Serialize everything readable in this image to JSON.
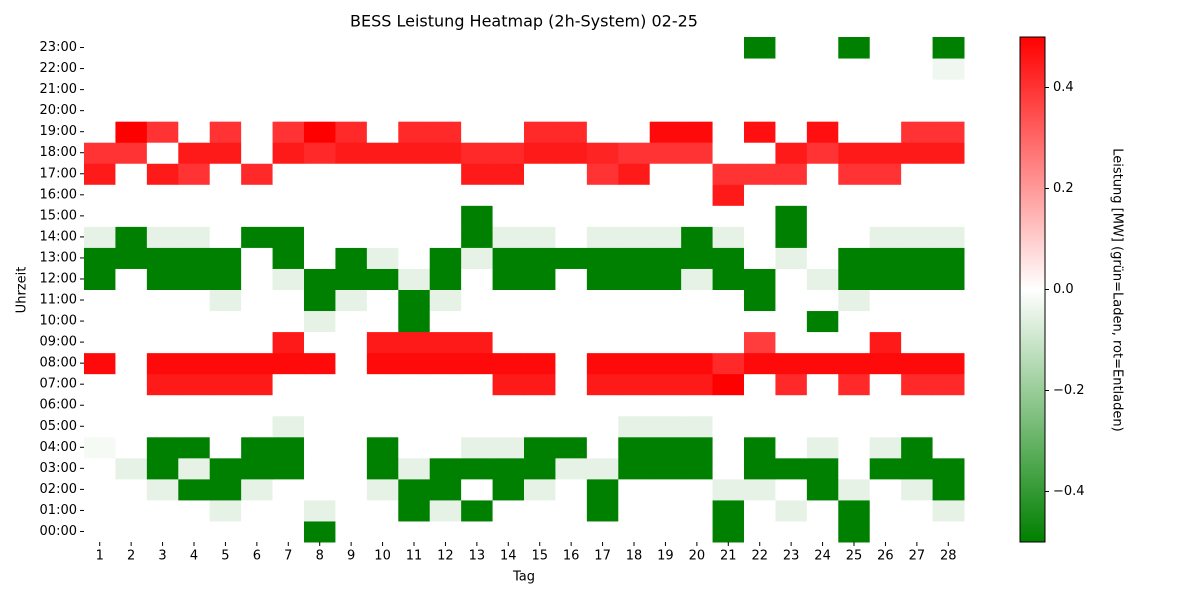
{
  "chart_data": {
    "type": "heatmap",
    "title": "BESS Leistung Heatmap (2h-System) 02-25",
    "x_label": "Tag",
    "y_label": "Uhrzeit",
    "colorbar_label": "Leistung [MW] (grün=Laden, rot=Entladen)",
    "x": [
      1,
      2,
      3,
      4,
      5,
      6,
      7,
      8,
      9,
      10,
      11,
      12,
      13,
      14,
      15,
      16,
      17,
      18,
      19,
      20,
      21,
      22,
      23,
      24,
      25,
      26,
      27,
      28
    ],
    "y": [
      "00:00",
      "01:00",
      "02:00",
      "03:00",
      "04:00",
      "05:00",
      "06:00",
      "07:00",
      "08:00",
      "09:00",
      "10:00",
      "11:00",
      "12:00",
      "13:00",
      "14:00",
      "15:00",
      "16:00",
      "17:00",
      "18:00",
      "19:00",
      "20:00",
      "21:00",
      "22:00",
      "23:00"
    ],
    "z": [
      [
        0,
        0,
        0,
        0,
        0,
        0,
        0,
        -0.5,
        0,
        0,
        0,
        0,
        0,
        0,
        0,
        0,
        0,
        0,
        0,
        0,
        -0.5,
        0,
        0,
        0,
        -0.5,
        0,
        0,
        0
      ],
      [
        0,
        0,
        0,
        0,
        -0.05,
        0,
        0,
        -0.05,
        0,
        0,
        -0.5,
        -0.05,
        -0.5,
        0,
        0,
        0,
        -0.5,
        0,
        0,
        0,
        -0.5,
        0,
        -0.05,
        0,
        -0.5,
        0,
        0,
        -0.05
      ],
      [
        0,
        0,
        -0.05,
        -0.5,
        -0.5,
        -0.05,
        0,
        0,
        0,
        -0.05,
        -0.5,
        -0.5,
        0,
        -0.5,
        -0.05,
        0,
        -0.5,
        0,
        0,
        0,
        -0.05,
        -0.05,
        0,
        -0.5,
        -0.05,
        0,
        -0.05,
        -0.5
      ],
      [
        0,
        -0.05,
        -0.5,
        -0.05,
        -0.5,
        -0.5,
        -0.5,
        0,
        0,
        -0.5,
        -0.05,
        -0.5,
        -0.5,
        -0.5,
        -0.5,
        -0.05,
        -0.05,
        -0.5,
        -0.5,
        -0.5,
        0,
        -0.5,
        -0.5,
        -0.5,
        0,
        -0.5,
        -0.5,
        -0.5
      ],
      [
        -0.02,
        0,
        -0.5,
        -0.5,
        0,
        -0.5,
        -0.5,
        0,
        0,
        -0.5,
        0,
        0,
        -0.05,
        -0.05,
        -0.5,
        -0.5,
        0,
        -0.5,
        -0.5,
        -0.5,
        0,
        -0.5,
        0,
        -0.05,
        0,
        -0.05,
        -0.5,
        0
      ],
      [
        0,
        0,
        0,
        0,
        0,
        0,
        -0.05,
        0,
        0,
        0,
        0,
        0,
        0,
        0,
        0,
        0,
        0,
        -0.05,
        -0.05,
        -0.05,
        0,
        0,
        0,
        0,
        0,
        0,
        0,
        0
      ],
      [
        0,
        0,
        0,
        0,
        0,
        0,
        0,
        0,
        0,
        0,
        0,
        0,
        0,
        0,
        0,
        0,
        0,
        0,
        0,
        0,
        0,
        0,
        0,
        0,
        0,
        0,
        0,
        0
      ],
      [
        0,
        0,
        0.45,
        0.45,
        0.45,
        0.45,
        0,
        0,
        0,
        0,
        0,
        0,
        0,
        0.45,
        0.45,
        0,
        0.45,
        0.45,
        0.45,
        0.45,
        0.5,
        0,
        0.42,
        0,
        0.42,
        0,
        0.42,
        0.42
      ],
      [
        0.48,
        0,
        0.48,
        0.48,
        0.48,
        0.48,
        0.48,
        0.48,
        0,
        0.48,
        0.48,
        0.48,
        0.48,
        0.48,
        0.48,
        0,
        0.48,
        0.48,
        0.48,
        0.48,
        0.42,
        0.48,
        0.48,
        0.48,
        0.48,
        0.48,
        0.48,
        0.48
      ],
      [
        0,
        0,
        0,
        0,
        0,
        0,
        0.45,
        0,
        0,
        0.45,
        0.45,
        0.45,
        0.45,
        0,
        0,
        0,
        0,
        0,
        0,
        0,
        0,
        0.38,
        0,
        0,
        0,
        0.45,
        0,
        0
      ],
      [
        0,
        0,
        0,
        0,
        0,
        0,
        0,
        -0.05,
        0,
        0,
        -0.5,
        0,
        0,
        0,
        0,
        0,
        0,
        0,
        0,
        0,
        0,
        0,
        0,
        -0.5,
        0,
        0,
        0,
        0
      ],
      [
        0,
        0,
        0,
        0,
        -0.05,
        0,
        0,
        -0.5,
        -0.05,
        0,
        -0.5,
        -0.05,
        0,
        0,
        0,
        0,
        0,
        0,
        0,
        0,
        0,
        -0.5,
        0,
        0,
        -0.05,
        0,
        0,
        0
      ],
      [
        -0.5,
        0,
        -0.5,
        -0.5,
        -0.5,
        0,
        -0.05,
        -0.5,
        -0.5,
        -0.5,
        -0.05,
        -0.5,
        0,
        -0.5,
        -0.5,
        0,
        -0.5,
        -0.5,
        -0.5,
        -0.05,
        -0.5,
        -0.5,
        0,
        -0.05,
        -0.5,
        -0.5,
        -0.5,
        -0.5
      ],
      [
        -0.5,
        -0.5,
        -0.5,
        -0.5,
        -0.5,
        0,
        -0.5,
        0,
        -0.5,
        -0.05,
        0,
        -0.5,
        -0.05,
        -0.5,
        -0.5,
        -0.5,
        -0.5,
        -0.5,
        -0.5,
        -0.5,
        -0.5,
        0,
        -0.05,
        0,
        -0.5,
        -0.5,
        -0.5,
        -0.5
      ],
      [
        -0.05,
        -0.5,
        -0.05,
        -0.05,
        0,
        -0.5,
        -0.5,
        0,
        0,
        0,
        0,
        0,
        -0.5,
        -0.05,
        -0.05,
        0,
        -0.05,
        -0.05,
        -0.05,
        -0.5,
        -0.05,
        0,
        -0.5,
        0,
        0,
        -0.05,
        -0.05,
        -0.05
      ],
      [
        0,
        0,
        0,
        0,
        0,
        0,
        0,
        0,
        0,
        0,
        0,
        0,
        -0.5,
        0,
        0,
        0,
        0,
        0,
        0,
        0,
        0,
        0,
        -0.5,
        0,
        0,
        0,
        0,
        0
      ],
      [
        0,
        0,
        0,
        0,
        0,
        0,
        0,
        0,
        0,
        0,
        0,
        0,
        0,
        0,
        0,
        0,
        0,
        0,
        0,
        0,
        0.45,
        0,
        0,
        0,
        0,
        0,
        0,
        0
      ],
      [
        0.45,
        0,
        0.45,
        0.4,
        0,
        0.42,
        0,
        0,
        0,
        0,
        0,
        0,
        0.45,
        0.45,
        0,
        0,
        0.4,
        0.45,
        0,
        0,
        0.4,
        0.4,
        0.4,
        0,
        0.4,
        0.4,
        0,
        0
      ],
      [
        0.4,
        0.4,
        0,
        0.45,
        0.45,
        0,
        0.45,
        0.42,
        0.45,
        0.45,
        0.45,
        0.45,
        0.42,
        0.42,
        0.45,
        0.45,
        0.43,
        0.4,
        0.4,
        0.4,
        0,
        0,
        0.45,
        0.4,
        0.45,
        0.45,
        0.45,
        0.45
      ],
      [
        0,
        0.5,
        0.4,
        0,
        0.4,
        0,
        0.4,
        0.5,
        0.42,
        0,
        0.42,
        0.42,
        0,
        0,
        0.42,
        0.42,
        0,
        0,
        0.48,
        0.48,
        0,
        0.47,
        0,
        0.47,
        0,
        0,
        0.4,
        0.4
      ],
      [
        0,
        0,
        0,
        0,
        0,
        0,
        0,
        0,
        0,
        0,
        0,
        0,
        0,
        0,
        0,
        0,
        0,
        0,
        0,
        0,
        0,
        0,
        0,
        0,
        0,
        0,
        0,
        0
      ],
      [
        0,
        0,
        0,
        0,
        0,
        0,
        0,
        0,
        0,
        0,
        0,
        0,
        0,
        0,
        0,
        0,
        0,
        0,
        0,
        0,
        0,
        0,
        0,
        0,
        0,
        0,
        0,
        0
      ],
      [
        0,
        0,
        0,
        0,
        0,
        0,
        0,
        0,
        0,
        0,
        0,
        0,
        0,
        0,
        0,
        0,
        0,
        0,
        0,
        0,
        0,
        0,
        0,
        0,
        0,
        0,
        0,
        -0.03
      ],
      [
        0,
        0,
        0,
        0,
        0,
        0,
        0,
        0,
        0,
        0,
        0,
        0,
        0,
        0,
        0,
        0,
        0,
        0,
        0,
        0,
        0,
        -0.5,
        0,
        0,
        -0.5,
        0,
        0,
        -0.5
      ]
    ],
    "colormap": [
      "#008000",
      "#ffffff",
      "#ff0000"
    ],
    "zlim": [
      -0.5,
      0.5
    ],
    "zticks": [
      {
        "value": -0.4,
        "label": "−0.4"
      },
      {
        "value": -0.2,
        "label": "−0.2"
      },
      {
        "value": 0,
        "label": "0.0"
      },
      0.2,
      0.4
    ]
  }
}
